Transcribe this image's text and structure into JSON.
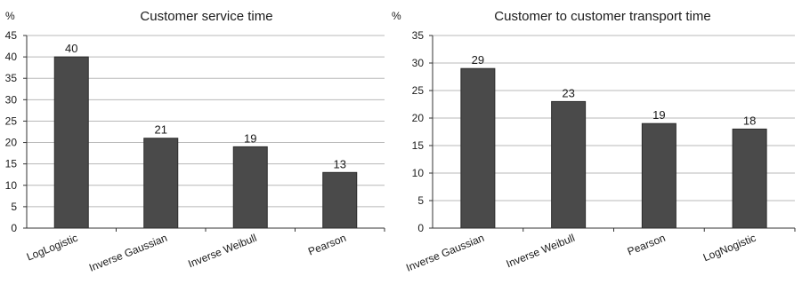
{
  "chart_data": [
    {
      "type": "bar",
      "title": "Customer service time",
      "ylabel": "%",
      "xlabel": "",
      "ylim": [
        0,
        45
      ],
      "ytick_step": 5,
      "grid": true,
      "bar_color": "#4a4a4a",
      "categories": [
        "LogLogistic",
        "Inverse Gaussian",
        "Inverse Weibull",
        "Pearson"
      ],
      "values": [
        40,
        21,
        19,
        13
      ]
    },
    {
      "type": "bar",
      "title": "Customer to customer transport time",
      "ylabel": "%",
      "xlabel": "",
      "ylim": [
        0,
        35
      ],
      "ytick_step": 5,
      "grid": true,
      "bar_color": "#4a4a4a",
      "categories": [
        "Inverse Gaussian",
        "Inverse Weibull",
        "Pearson",
        "LogNogistic"
      ],
      "values": [
        29,
        23,
        19,
        18
      ]
    }
  ]
}
